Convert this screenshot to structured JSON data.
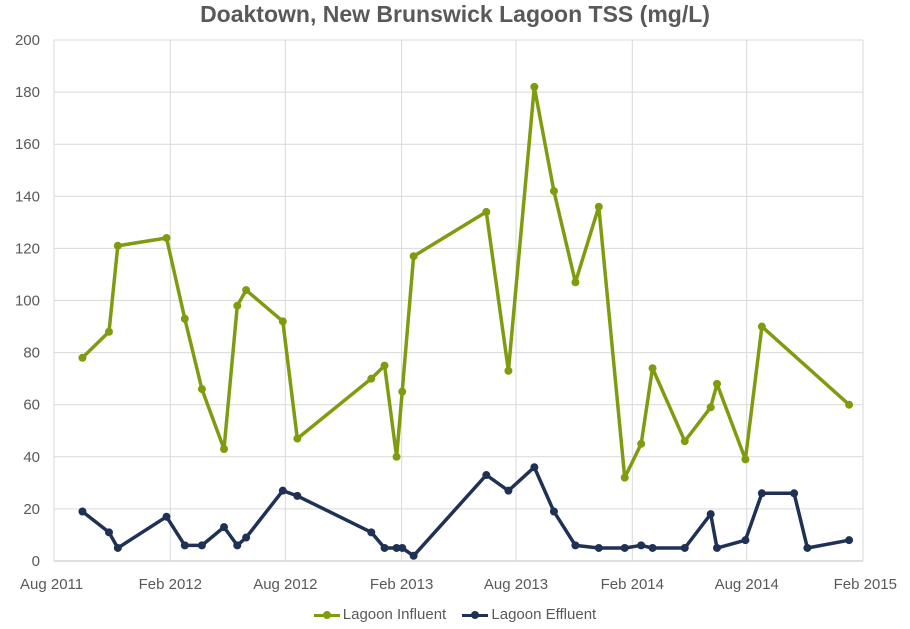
{
  "chart_data": {
    "type": "line",
    "title": "Doaktown, New Brunswick Lagoon TSS (mg/L)",
    "xlabel": "",
    "ylabel": "",
    "ylim": [
      0,
      200
    ],
    "yticks": [
      0,
      20,
      40,
      60,
      80,
      100,
      120,
      140,
      160,
      180,
      200
    ],
    "xlim": [
      "2011-08-01",
      "2015-02-01"
    ],
    "xticks": [
      {
        "date": "2011-08-01",
        "label": "Aug 2011"
      },
      {
        "date": "2012-02-01",
        "label": "Feb 2012"
      },
      {
        "date": "2012-08-01",
        "label": "Aug 2012"
      },
      {
        "date": "2013-02-01",
        "label": "Feb 2013"
      },
      {
        "date": "2013-08-01",
        "label": "Aug 2013"
      },
      {
        "date": "2014-02-01",
        "label": "Feb 2014"
      },
      {
        "date": "2014-08-01",
        "label": "Aug 2014"
      },
      {
        "date": "2015-02-01",
        "label": "Feb 2015"
      }
    ],
    "grid": true,
    "legend_position": "bottom",
    "series": [
      {
        "name": "Lagoon Influent",
        "color": "#7f9c11",
        "points": [
          {
            "x": "2011-09-15",
            "y": 78
          },
          {
            "x": "2011-10-27",
            "y": 88
          },
          {
            "x": "2011-11-10",
            "y": 121
          },
          {
            "x": "2012-01-26",
            "y": 124
          },
          {
            "x": "2012-02-24",
            "y": 93
          },
          {
            "x": "2012-03-22",
            "y": 66
          },
          {
            "x": "2012-04-26",
            "y": 43
          },
          {
            "x": "2012-05-17",
            "y": 98
          },
          {
            "x": "2012-05-31",
            "y": 104
          },
          {
            "x": "2012-07-28",
            "y": 92
          },
          {
            "x": "2012-08-20",
            "y": 47
          },
          {
            "x": "2012-12-15",
            "y": 70
          },
          {
            "x": "2013-01-05",
            "y": 75
          },
          {
            "x": "2013-01-24",
            "y": 40
          },
          {
            "x": "2013-02-02",
            "y": 65
          },
          {
            "x": "2013-02-20",
            "y": 117
          },
          {
            "x": "2013-06-15",
            "y": 134
          },
          {
            "x": "2013-07-20",
            "y": 73
          },
          {
            "x": "2013-08-30",
            "y": 182
          },
          {
            "x": "2013-09-30",
            "y": 142
          },
          {
            "x": "2013-11-03",
            "y": 107
          },
          {
            "x": "2013-12-10",
            "y": 136
          },
          {
            "x": "2014-01-20",
            "y": 32
          },
          {
            "x": "2014-02-15",
            "y": 45
          },
          {
            "x": "2014-03-05",
            "y": 74
          },
          {
            "x": "2014-04-25",
            "y": 46
          },
          {
            "x": "2014-06-05",
            "y": 59
          },
          {
            "x": "2014-06-15",
            "y": 68
          },
          {
            "x": "2014-07-30",
            "y": 39
          },
          {
            "x": "2014-08-25",
            "y": 90
          },
          {
            "x": "2015-01-10",
            "y": 60
          }
        ]
      },
      {
        "name": "Lagoon Effluent",
        "color": "#1f3155",
        "points": [
          {
            "x": "2011-09-15",
            "y": 19
          },
          {
            "x": "2011-10-27",
            "y": 11
          },
          {
            "x": "2011-11-10",
            "y": 5
          },
          {
            "x": "2012-01-26",
            "y": 17
          },
          {
            "x": "2012-02-24",
            "y": 6
          },
          {
            "x": "2012-03-22",
            "y": 6
          },
          {
            "x": "2012-04-26",
            "y": 13
          },
          {
            "x": "2012-05-17",
            "y": 6
          },
          {
            "x": "2012-05-31",
            "y": 9
          },
          {
            "x": "2012-07-28",
            "y": 27
          },
          {
            "x": "2012-08-20",
            "y": 25
          },
          {
            "x": "2012-12-15",
            "y": 11
          },
          {
            "x": "2013-01-05",
            "y": 5
          },
          {
            "x": "2013-01-24",
            "y": 5
          },
          {
            "x": "2013-02-02",
            "y": 5
          },
          {
            "x": "2013-02-20",
            "y": 2
          },
          {
            "x": "2013-06-15",
            "y": 33
          },
          {
            "x": "2013-07-20",
            "y": 27
          },
          {
            "x": "2013-08-30",
            "y": 36
          },
          {
            "x": "2013-09-30",
            "y": 19
          },
          {
            "x": "2013-11-03",
            "y": 6
          },
          {
            "x": "2013-12-10",
            "y": 5
          },
          {
            "x": "2014-01-20",
            "y": 5
          },
          {
            "x": "2014-02-15",
            "y": 6
          },
          {
            "x": "2014-03-05",
            "y": 5
          },
          {
            "x": "2014-04-25",
            "y": 5
          },
          {
            "x": "2014-06-05",
            "y": 18
          },
          {
            "x": "2014-06-15",
            "y": 5
          },
          {
            "x": "2014-07-30",
            "y": 8
          },
          {
            "x": "2014-08-25",
            "y": 26
          },
          {
            "x": "2014-10-15",
            "y": 26
          },
          {
            "x": "2014-11-05",
            "y": 5
          },
          {
            "x": "2015-01-10",
            "y": 8
          }
        ]
      }
    ]
  }
}
